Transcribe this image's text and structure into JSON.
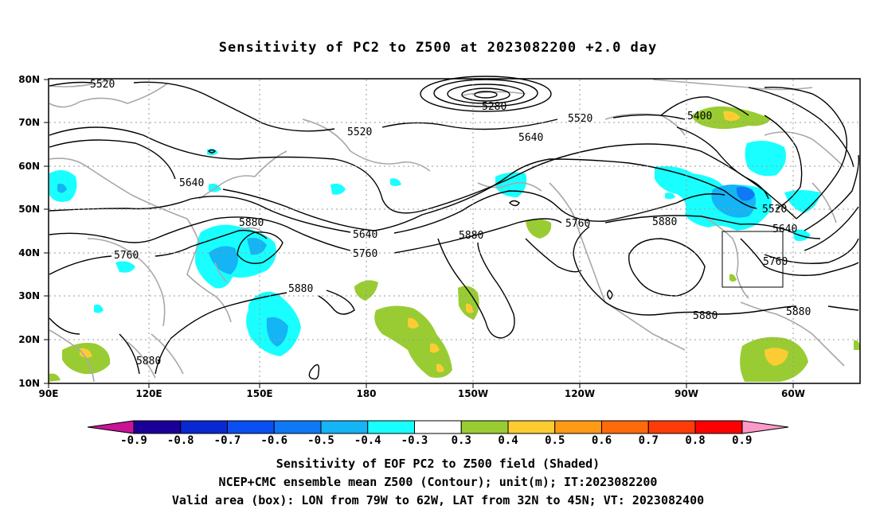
{
  "title": "Sensitivity of PC2 to Z500 at 2023082200 +2.0 day",
  "axes": {
    "lat_labels": [
      "80N",
      "70N",
      "60N",
      "50N",
      "40N",
      "30N",
      "20N",
      "10N"
    ],
    "lon_labels": [
      "90E",
      "120E",
      "150E",
      "180",
      "150W",
      "120W",
      "90W",
      "60W"
    ]
  },
  "contour_labels": [
    {
      "text": "5520"
    },
    {
      "text": "5280"
    },
    {
      "text": "5520"
    },
    {
      "text": "5520"
    },
    {
      "text": "5400"
    },
    {
      "text": "5640"
    },
    {
      "text": "5640"
    },
    {
      "text": "5520"
    },
    {
      "text": "5880"
    },
    {
      "text": "5640"
    },
    {
      "text": "5880"
    },
    {
      "text": "5760"
    },
    {
      "text": "5880"
    },
    {
      "text": "5640"
    },
    {
      "text": "5760"
    },
    {
      "text": "5760"
    },
    {
      "text": "5760"
    },
    {
      "text": "5880"
    },
    {
      "text": "5880"
    },
    {
      "text": "5880"
    },
    {
      "text": "5880"
    }
  ],
  "colorbar": {
    "labels": [
      "-0.9",
      "-0.8",
      "-0.7",
      "-0.6",
      "-0.5",
      "-0.4",
      "-0.3",
      "0.3",
      "0.4",
      "0.5",
      "0.6",
      "0.7",
      "0.8",
      "0.9"
    ],
    "colors": [
      "#1a0096",
      "#0a28d2",
      "#0a4ff0",
      "#0f78f5",
      "#14b4f5",
      "#19ffff",
      "#ffffff",
      "#99cc33",
      "#fdcc33",
      "#fd9a16",
      "#fd6b0a",
      "#fd3c0a",
      "#fd0000"
    ],
    "low_end_color": "#c81496",
    "high_end_color": "#fd9ac8"
  },
  "valid_box": {
    "lon_from": -79,
    "lon_to": -62,
    "lat_from": 32,
    "lat_to": 45
  },
  "captions": {
    "line1": "Sensitivity of EOF PC2 to Z500 field (Shaded)",
    "line2": "NCEP+CMC ensemble mean Z500 (Contour); unit(m); IT:2023082200",
    "line3": "Valid area (box): LON from 79W to 62W, LAT from 32N to 45N; VT: 2023082400"
  }
}
